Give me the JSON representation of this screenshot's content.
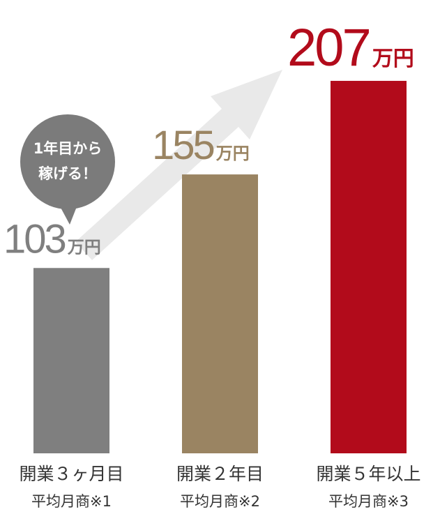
{
  "chart_data": {
    "type": "bar",
    "categories": [
      "開業３ヶ月目",
      "開業２年目",
      "開業５年以上"
    ],
    "category_notes": [
      "平均月商※1",
      "平均月商※2",
      "平均月商※3"
    ],
    "values": [
      103,
      155,
      207
    ],
    "unit": "万円",
    "colors": [
      "#7f7f7f",
      "#9a8462",
      "#b20b1b"
    ],
    "annotation": [
      "1年目から",
      "稼げる！"
    ]
  }
}
